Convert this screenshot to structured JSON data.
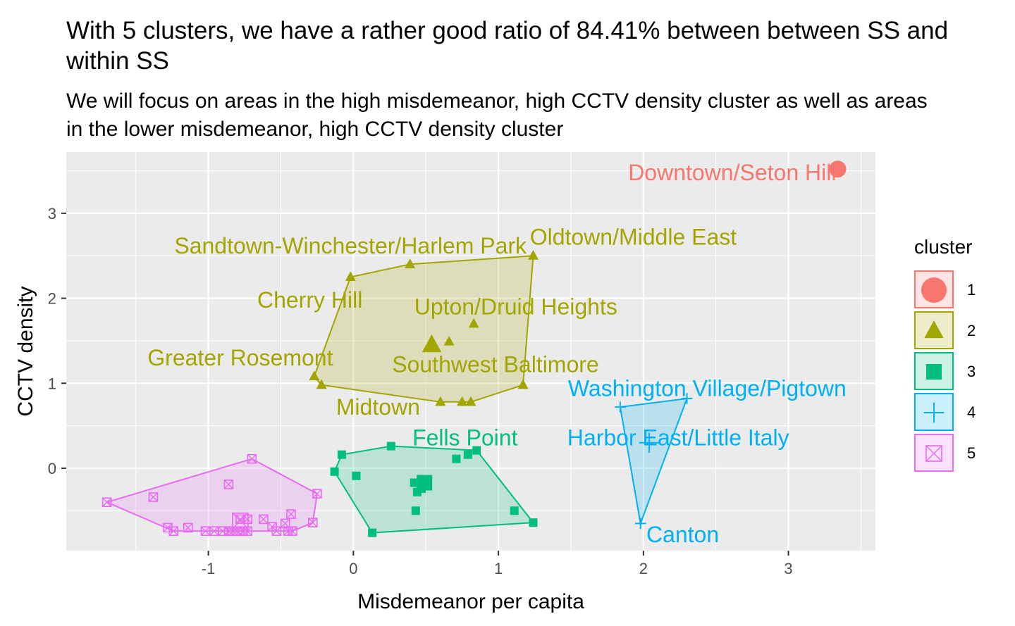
{
  "chart_data": {
    "type": "scatter",
    "title": "With 5 clusters, we have a rather good ratio of 84.41% between between SS and within SS",
    "subtitle": "We will focus on areas in the high misdemeanor, high CCTV density cluster as well as areas in the lower misdemeanor, high CCTV density cluster",
    "xlabel": "Misdemeanor per capita",
    "ylabel": "CCTV density",
    "xlim": [
      -1.98,
      3.6
    ],
    "ylim": [
      -0.97,
      3.72
    ],
    "xticks": [
      -1,
      0,
      1,
      2,
      3
    ],
    "xtick_labels": [
      "-1",
      "0",
      "1",
      "2",
      "3"
    ],
    "yticks": [
      0,
      1,
      2,
      3
    ],
    "ytick_labels": [
      "0",
      "1",
      "2",
      "3"
    ],
    "grid": true,
    "legend": {
      "title": "cluster",
      "position": "right"
    },
    "colors": {
      "panel_background": "#EBEBEB",
      "grid": "#FFFFFF",
      "cluster_1": "#F8766D",
      "cluster_2": "#A3A500",
      "cluster_3": "#00BF7D",
      "cluster_4": "#00B0F6",
      "cluster_5": "#E76BF3"
    },
    "series": [
      {
        "name": "1",
        "shape": "circle",
        "points": [
          [
            3.34,
            3.52
          ]
        ],
        "centroid": [
          3.34,
          3.52
        ],
        "hull": [],
        "labels": [
          {
            "text": "Downtown/Seton Hill",
            "x": 3.33,
            "y": 3.48,
            "anchor": "end"
          }
        ]
      },
      {
        "name": "2",
        "shape": "triangle",
        "points": [
          [
            -0.27,
            1.08
          ],
          [
            -0.22,
            0.98
          ],
          [
            -0.02,
            2.25
          ],
          [
            0.39,
            2.4
          ],
          [
            0.6,
            0.78
          ],
          [
            0.66,
            1.49
          ],
          [
            0.75,
            0.78
          ],
          [
            0.81,
            0.78
          ],
          [
            0.83,
            1.7
          ],
          [
            1.17,
            0.98
          ],
          [
            1.24,
            2.5
          ]
        ],
        "centroid": [
          0.54,
          1.45
        ],
        "hull": [
          [
            -0.27,
            1.08
          ],
          [
            -0.02,
            2.25
          ],
          [
            0.39,
            2.4
          ],
          [
            1.24,
            2.5
          ],
          [
            1.17,
            0.98
          ],
          [
            0.81,
            0.78
          ],
          [
            0.6,
            0.78
          ],
          [
            -0.22,
            0.98
          ]
        ],
        "labels": [
          {
            "text": "Sandtown-Winchester/Harlem Park",
            "x": -0.02,
            "y": 2.62,
            "anchor": "middle"
          },
          {
            "text": "Oldtown/Middle East",
            "x": 1.93,
            "y": 2.72,
            "anchor": "middle"
          },
          {
            "text": "Cherry Hill",
            "x": -0.3,
            "y": 1.98,
            "anchor": "middle"
          },
          {
            "text": "Upton/Druid Heights",
            "x": 1.12,
            "y": 1.9,
            "anchor": "middle"
          },
          {
            "text": "Greater Rosemont",
            "x": -0.78,
            "y": 1.3,
            "anchor": "middle"
          },
          {
            "text": "Southwest Baltimore",
            "x": 0.98,
            "y": 1.22,
            "anchor": "middle"
          },
          {
            "text": "Midtown",
            "x": 0.17,
            "y": 0.72,
            "anchor": "middle"
          }
        ]
      },
      {
        "name": "3",
        "shape": "square",
        "points": [
          [
            -0.13,
            -0.04
          ],
          [
            -0.08,
            0.16
          ],
          [
            0.02,
            -0.09
          ],
          [
            0.13,
            -0.76
          ],
          [
            0.26,
            0.26
          ],
          [
            0.42,
            -0.17
          ],
          [
            0.43,
            -0.5
          ],
          [
            0.44,
            -0.28
          ],
          [
            0.47,
            -0.24
          ],
          [
            0.49,
            -0.21
          ],
          [
            0.71,
            0.11
          ],
          [
            0.79,
            0.16
          ],
          [
            0.85,
            0.21
          ],
          [
            1.11,
            -0.5
          ],
          [
            1.24,
            -0.64
          ]
        ],
        "centroid": [
          0.49,
          -0.17
        ],
        "hull": [
          [
            -0.13,
            -0.04
          ],
          [
            -0.08,
            0.16
          ],
          [
            0.26,
            0.26
          ],
          [
            0.85,
            0.21
          ],
          [
            1.24,
            -0.64
          ],
          [
            0.13,
            -0.76
          ]
        ],
        "labels": [
          {
            "text": "Fells Point",
            "x": 0.77,
            "y": 0.36,
            "anchor": "middle"
          }
        ]
      },
      {
        "name": "4",
        "shape": "plus",
        "points": [
          [
            1.84,
            0.72
          ],
          [
            2.3,
            0.82
          ],
          [
            1.98,
            -0.65
          ]
        ],
        "centroid": [
          2.04,
          0.3
        ],
        "hull": [
          [
            1.84,
            0.72
          ],
          [
            2.3,
            0.82
          ],
          [
            1.98,
            -0.65
          ]
        ],
        "labels": [
          {
            "text": "Washington Village/Pigtown",
            "x": 2.44,
            "y": 0.94,
            "anchor": "middle"
          },
          {
            "text": "Harbor East/Little Italy",
            "x": 2.24,
            "y": 0.36,
            "anchor": "middle"
          },
          {
            "text": "Canton",
            "x": 2.02,
            "y": -0.78,
            "anchor": "start"
          }
        ]
      },
      {
        "name": "5",
        "shape": "boxed-x",
        "points": [
          [
            -1.7,
            -0.4
          ],
          [
            -1.38,
            -0.34
          ],
          [
            -1.28,
            -0.7
          ],
          [
            -1.24,
            -0.74
          ],
          [
            -1.14,
            -0.7
          ],
          [
            -1.02,
            -0.74
          ],
          [
            -0.96,
            -0.74
          ],
          [
            -0.9,
            -0.74
          ],
          [
            -0.86,
            -0.74
          ],
          [
            -0.83,
            -0.74
          ],
          [
            -0.8,
            -0.74
          ],
          [
            -0.76,
            -0.74
          ],
          [
            -0.73,
            -0.74
          ],
          [
            -0.86,
            -0.19
          ],
          [
            -0.78,
            -0.6
          ],
          [
            -0.73,
            -0.6
          ],
          [
            -0.7,
            0.11
          ],
          [
            -0.62,
            -0.6
          ],
          [
            -0.56,
            -0.69
          ],
          [
            -0.53,
            -0.74
          ],
          [
            -0.47,
            -0.65
          ],
          [
            -0.45,
            -0.74
          ],
          [
            -0.43,
            -0.54
          ],
          [
            -0.42,
            -0.74
          ],
          [
            -0.28,
            -0.64
          ],
          [
            -0.25,
            -0.3
          ]
        ],
        "centroid": [
          -0.78,
          -0.62
        ],
        "hull": [
          [
            -1.7,
            -0.4
          ],
          [
            -0.7,
            0.11
          ],
          [
            -0.25,
            -0.3
          ],
          [
            -0.28,
            -0.64
          ],
          [
            -0.42,
            -0.74
          ],
          [
            -1.24,
            -0.74
          ]
        ],
        "labels": []
      }
    ]
  }
}
